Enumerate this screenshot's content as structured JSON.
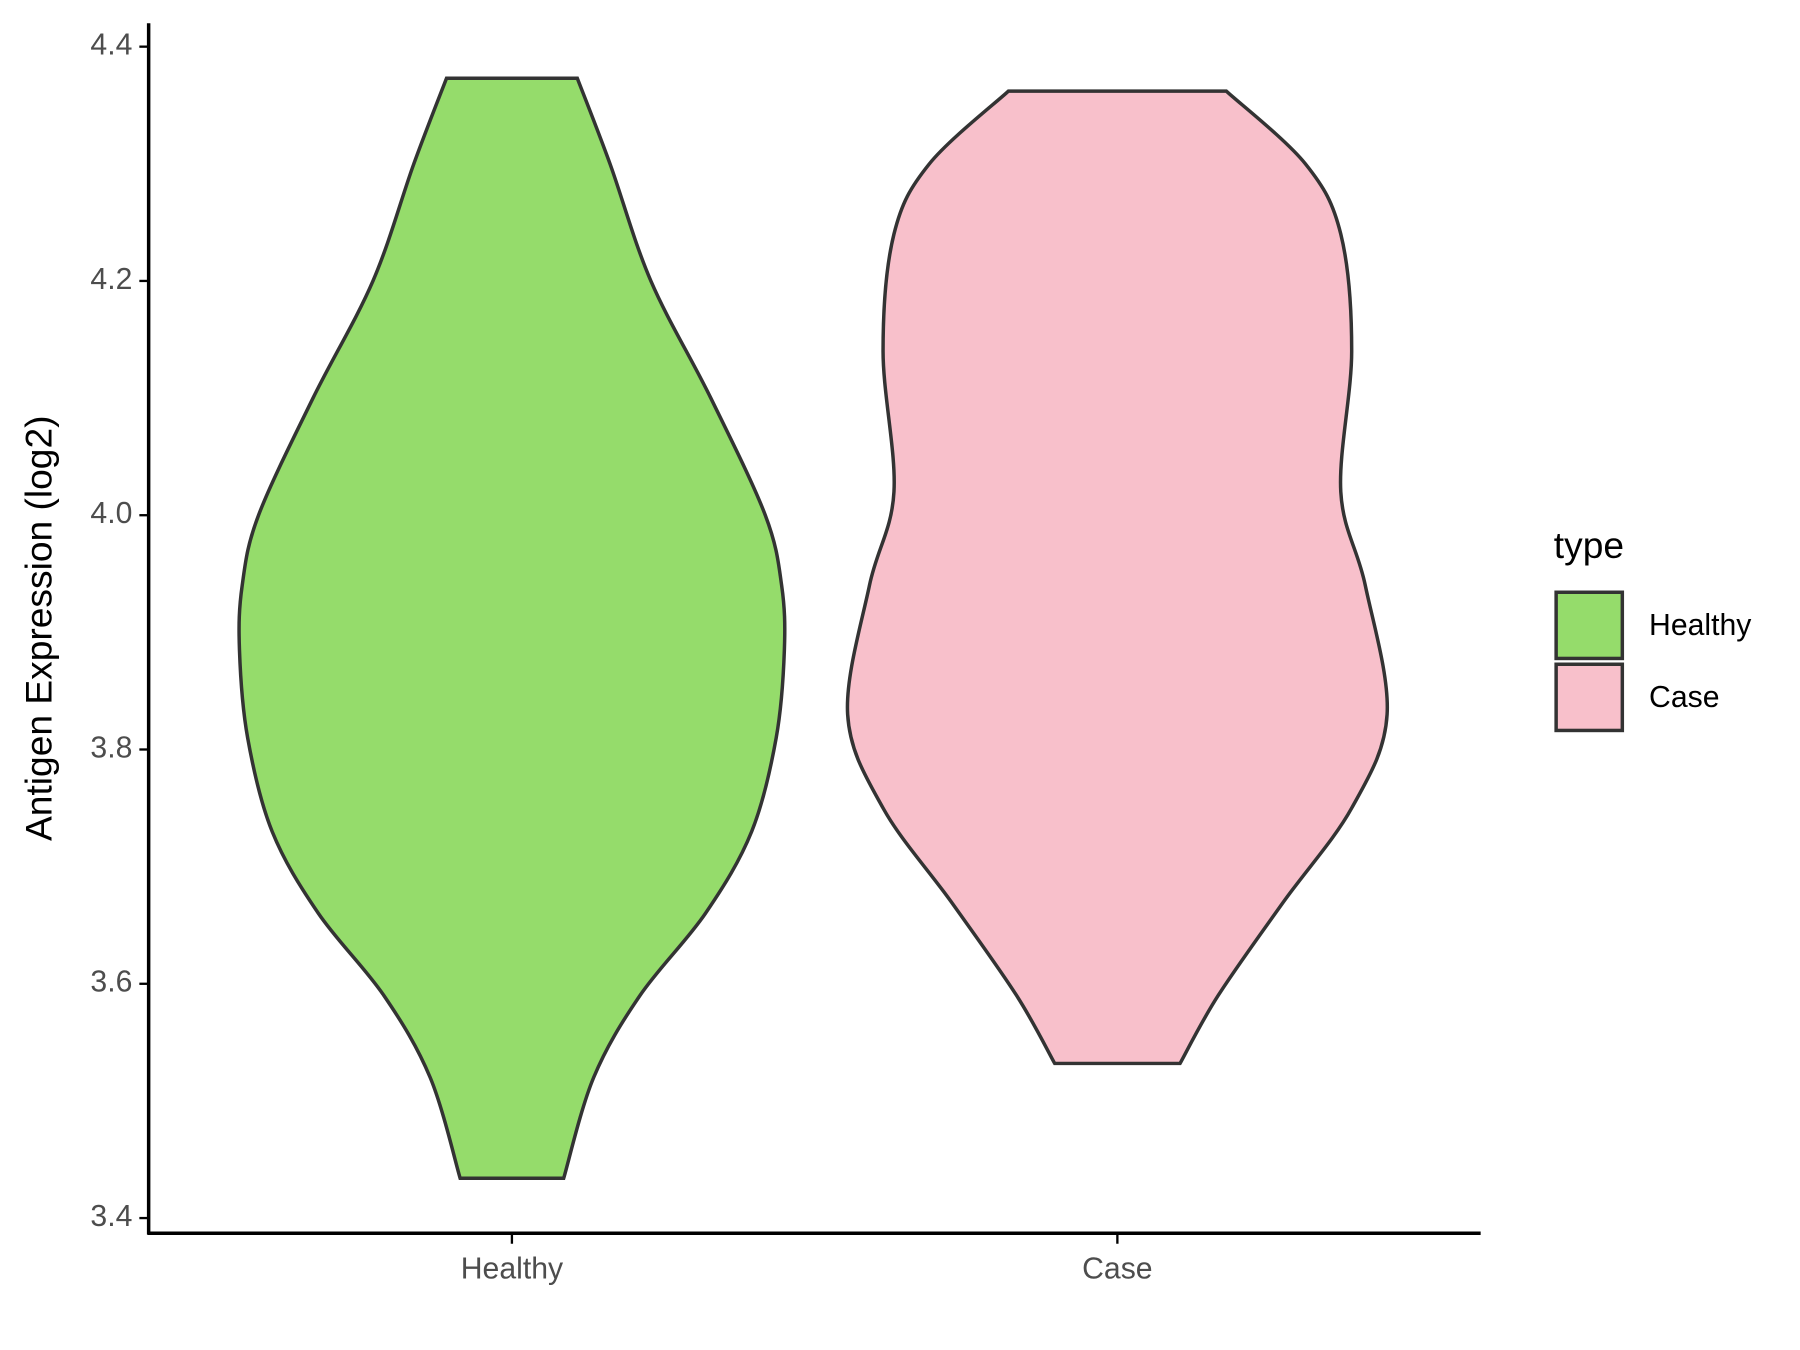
{
  "chart_data": {
    "type": "violin",
    "y_label": "Antigen Expression (log2)",
    "categories": [
      "Healthy",
      "Case"
    ],
    "ylim": [
      3.387,
      4.42
    ],
    "yticks": [
      3.4,
      3.6,
      3.8,
      {
        "value": 4,
        "label": "4.0"
      },
      4.2,
      4.4
    ],
    "legend_title": "type",
    "legend": "right",
    "series": [
      {
        "name": "Healthy",
        "color": "#95dc6b",
        "y": [
          4.373,
          4.3,
          4.2,
          4.1,
          4.0,
          3.94,
          3.885,
          3.81,
          3.73,
          3.66,
          3.59,
          3.52,
          3.434
        ],
        "width": [
          0.24,
          0.36,
          0.51,
          0.73,
          0.93,
          0.99,
          1.0,
          0.97,
          0.88,
          0.71,
          0.47,
          0.3,
          0.19
        ]
      },
      {
        "name": "Case",
        "color": "#f8c0cb",
        "y": [
          4.362,
          4.3,
          4.24,
          4.14,
          4.02,
          3.94,
          3.83,
          3.75,
          3.67,
          3.59,
          3.532
        ],
        "width": [
          0.4,
          0.69,
          0.82,
          0.86,
          0.82,
          0.91,
          0.99,
          0.86,
          0.61,
          0.37,
          0.23
        ]
      }
    ]
  }
}
